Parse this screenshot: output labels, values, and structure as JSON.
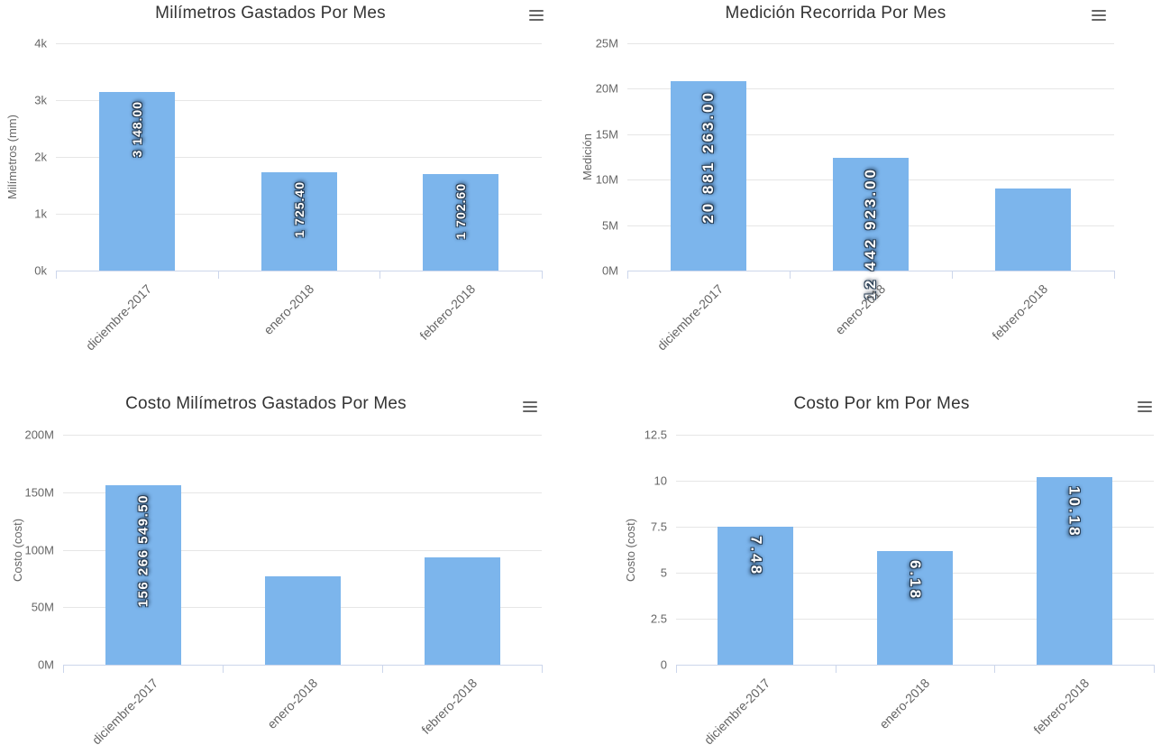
{
  "colors": {
    "bar": "#7cb5ec",
    "title": "#333333",
    "axis_text": "#666666",
    "grid": "#e6e6e6",
    "axis_line": "#ccd6eb",
    "data_label": "#ffffff"
  },
  "icons": {
    "export_menu": "hamburger-menu-icon"
  },
  "chart_data": [
    {
      "type": "bar",
      "title": "Milímetros Gastados Por Mes",
      "ylabel": "Milímetros (mm)",
      "xlabel": "",
      "categories": [
        "diciembre-2017",
        "enero-2018",
        "febrero-2018"
      ],
      "values": [
        3148.0,
        1725.4,
        1702.6
      ],
      "data_labels": [
        "3 148.00",
        "1 725.40",
        "1 702.60"
      ],
      "yticks": [
        "0k",
        "1k",
        "2k",
        "3k",
        "4k"
      ],
      "ylim": [
        0,
        4000
      ],
      "grid": "on",
      "legend": "none",
      "label_rotation": -90
    },
    {
      "type": "bar",
      "title": "Medición Recorrida Por Mes",
      "ylabel": "Medición",
      "xlabel": "",
      "categories": [
        "diciembre-2017",
        "enero-2018",
        "febrero-2018"
      ],
      "values": [
        20881263.0,
        12442923.0,
        9050000
      ],
      "data_labels": [
        "20 881 263.00",
        "12 442 923.00",
        ""
      ],
      "yticks": [
        "0M",
        "5M",
        "10M",
        "15M",
        "20M",
        "25M"
      ],
      "ylim": [
        0,
        25000000
      ],
      "grid": "on",
      "legend": "none",
      "label_rotation": -90
    },
    {
      "type": "bar",
      "title": "Costo Milímetros Gastados Por Mes",
      "ylabel": "Costo (cost)",
      "xlabel": "",
      "categories": [
        "diciembre-2017",
        "enero-2018",
        "febrero-2018"
      ],
      "values": [
        156266549.5,
        76500000,
        93000000
      ],
      "data_labels": [
        "156 266 549.50",
        "",
        ""
      ],
      "yticks": [
        "0M",
        "50M",
        "100M",
        "150M",
        "200M"
      ],
      "ylim": [
        0,
        200000000
      ],
      "grid": "on",
      "legend": "none",
      "label_rotation": -90
    },
    {
      "type": "bar",
      "title": "Costo Por km Por Mes",
      "ylabel": "Costo (cost)",
      "xlabel": "",
      "categories": [
        "diciembre-2017",
        "enero-2018",
        "febrero-2018"
      ],
      "values": [
        7.48,
        6.18,
        10.18
      ],
      "data_labels": [
        "7.48",
        "6.18",
        "10.18"
      ],
      "yticks": [
        "0",
        "2.5",
        "5",
        "7.5",
        "10",
        "12.5"
      ],
      "ylim": [
        0,
        12.5
      ],
      "grid": "on",
      "legend": "none",
      "label_rotation": 90
    }
  ]
}
